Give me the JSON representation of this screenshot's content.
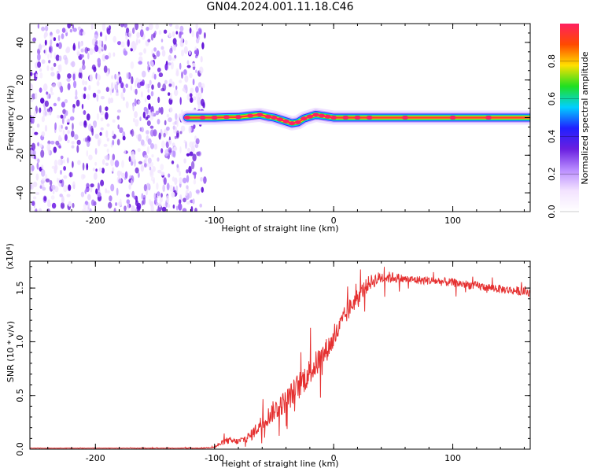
{
  "title": "GN04.2024.001.11.18.C46",
  "colors": {
    "accent_trace": "#e53030",
    "spectro_noise": "#8a3cf0",
    "colormap": [
      "#ffffff",
      "#f3e3ff",
      "#b98cff",
      "#6a1fe0",
      "#2020ff",
      "#00d0ff",
      "#20e020",
      "#ffe000",
      "#ff4a00",
      "#ff2060"
    ]
  },
  "chart_data": [
    {
      "type": "heatmap",
      "title": "",
      "xlabel": "Height of straight line (km)",
      "ylabel": "Frequency (Hz)",
      "xlim": [
        -255,
        165
      ],
      "ylim": [
        -50,
        50
      ],
      "xticks": [
        -200,
        -100,
        0,
        100
      ],
      "yticks": [
        -40,
        -20,
        0,
        20,
        40
      ],
      "grid": false,
      "noise_region_x": [
        -255,
        -108
      ],
      "ridge": {
        "x": [
          -123,
          -110,
          -100,
          -90,
          -80,
          -70,
          -62,
          -55,
          -50,
          -45,
          -40,
          -35,
          -30,
          -25,
          -20,
          -15,
          -10,
          -5,
          0,
          10,
          20,
          30,
          60,
          100,
          130,
          165
        ],
        "y": [
          0,
          0,
          0,
          0.2,
          0.3,
          1,
          1.5,
          0.5,
          0,
          -1,
          -2,
          -3,
          -2.5,
          -0.5,
          0.5,
          1.5,
          1,
          0.5,
          0,
          0,
          0,
          0,
          0,
          0,
          0,
          0
        ]
      },
      "colorbar": {
        "label": "Normalized spectral amplitude",
        "range": [
          0,
          1
        ],
        "ticks": [
          "0.0",
          "0.2",
          "0.4",
          "0.6",
          "0.8"
        ]
      }
    },
    {
      "type": "line",
      "title": "",
      "xlabel": "Height of straight line (km)",
      "ylabel": "SNR (10 * v/v)",
      "y_multiplier": "(x10⁴)",
      "xlim": [
        -255,
        165
      ],
      "ylim": [
        0,
        1.75
      ],
      "xticks": [
        -200,
        -100,
        0,
        100
      ],
      "yticks": [
        "0.0",
        "0.5",
        "1.0",
        "1.5"
      ],
      "grid": false,
      "series": [
        {
          "x": [
            -255,
            -200,
            -150,
            -110,
            -100,
            -95,
            -90,
            -80,
            -70,
            -60,
            -50,
            -40,
            -30,
            -20,
            -10,
            0,
            10,
            20,
            30,
            40,
            50,
            60,
            80,
            100,
            120,
            140,
            165
          ],
          "values": [
            0.01,
            0.01,
            0.01,
            0.01,
            0.02,
            0.05,
            0.08,
            0.07,
            0.12,
            0.25,
            0.36,
            0.45,
            0.58,
            0.72,
            0.86,
            1.02,
            1.25,
            1.42,
            1.55,
            1.6,
            1.6,
            1.58,
            1.57,
            1.55,
            1.52,
            1.49,
            1.46
          ],
          "noise": [
            0.002,
            0.002,
            0.002,
            0.003,
            0.008,
            0.02,
            0.03,
            0.03,
            0.05,
            0.08,
            0.1,
            0.11,
            0.13,
            0.13,
            0.12,
            0.1,
            0.1,
            0.08,
            0.07,
            0.06,
            0.05,
            0.04,
            0.04,
            0.04,
            0.04,
            0.04,
            0.04
          ]
        }
      ]
    }
  ]
}
